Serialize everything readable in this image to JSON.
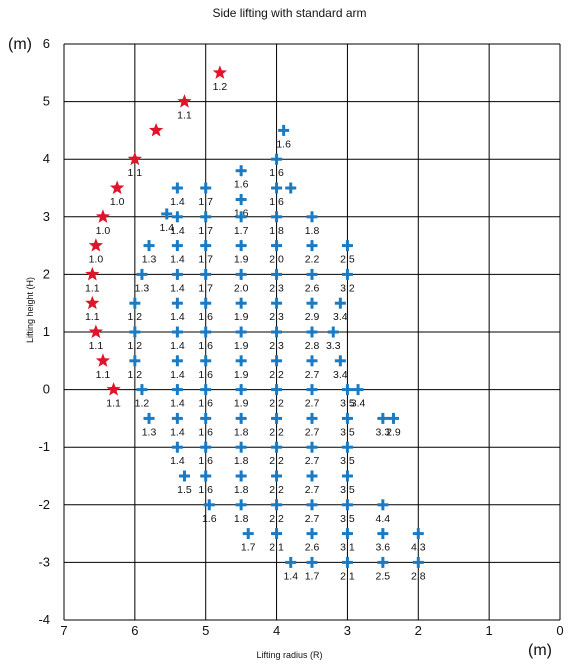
{
  "chart_data": {
    "type": "scatter",
    "title": "Side lifting with standard arm",
    "xlabel": "Lifting radius (R)",
    "ylabel": "Lifting height (H)",
    "x_unit": "(m)",
    "y_unit": "(m)",
    "xlim": [
      7,
      0
    ],
    "ylim": [
      -4,
      6
    ],
    "x_ticks": [
      "7",
      "6",
      "5",
      "4",
      "3",
      "2",
      "1",
      "0"
    ],
    "y_ticks": [
      "-4",
      "-3",
      "-2",
      "-1",
      "0",
      "1",
      "2",
      "3",
      "4",
      "5",
      "6"
    ],
    "grid": true,
    "marker_colors": {
      "star": "#e0142b",
      "cross": "#1a7ac4"
    },
    "series": [
      {
        "marker": "star",
        "points": [
          {
            "x": 4.8,
            "y": 5.5,
            "label": "1.2"
          },
          {
            "x": 5.3,
            "y": 5.0,
            "label": "1.1"
          },
          {
            "x": 5.7,
            "y": 4.5,
            "label": ""
          },
          {
            "x": 6.0,
            "y": 4.0,
            "label": "1.1"
          },
          {
            "x": 6.25,
            "y": 3.5,
            "label": "1.0"
          },
          {
            "x": 6.45,
            "y": 3.0,
            "label": "1.0"
          },
          {
            "x": 6.55,
            "y": 2.5,
            "label": "1.0"
          },
          {
            "x": 6.6,
            "y": 2.0,
            "label": "1.1"
          },
          {
            "x": 6.6,
            "y": 1.5,
            "label": "1.1"
          },
          {
            "x": 6.55,
            "y": 1.0,
            "label": "1.1"
          },
          {
            "x": 6.45,
            "y": 0.5,
            "label": "1.1"
          },
          {
            "x": 6.3,
            "y": 0.0,
            "label": "1.1"
          }
        ]
      },
      {
        "marker": "cross",
        "points": [
          {
            "x": 3.9,
            "y": 4.5,
            "label": "1.6"
          },
          {
            "x": 4.0,
            "y": 4.0,
            "label": "1.6"
          },
          {
            "x": 4.5,
            "y": 3.8,
            "label": "1.6"
          },
          {
            "x": 5.4,
            "y": 3.5,
            "label": "1.4"
          },
          {
            "x": 5.0,
            "y": 3.5,
            "label": "1.7"
          },
          {
            "x": 4.0,
            "y": 3.5,
            "label": "1.6"
          },
          {
            "x": 3.8,
            "y": 3.5,
            "label": ""
          },
          {
            "x": 4.5,
            "y": 3.3,
            "label": "1.6"
          },
          {
            "x": 5.55,
            "y": 3.05,
            "label": "1.4"
          },
          {
            "x": 5.4,
            "y": 3.0,
            "label": "1.4"
          },
          {
            "x": 5.0,
            "y": 3.0,
            "label": "1.7"
          },
          {
            "x": 4.5,
            "y": 3.0,
            "label": "1.7"
          },
          {
            "x": 4.0,
            "y": 3.0,
            "label": "1.8"
          },
          {
            "x": 3.5,
            "y": 3.0,
            "label": "1.8"
          },
          {
            "x": 5.8,
            "y": 2.5,
            "label": "1.3"
          },
          {
            "x": 5.4,
            "y": 2.5,
            "label": "1.4"
          },
          {
            "x": 5.0,
            "y": 2.5,
            "label": "1.7"
          },
          {
            "x": 4.5,
            "y": 2.5,
            "label": "1.9"
          },
          {
            "x": 4.0,
            "y": 2.5,
            "label": "2.0"
          },
          {
            "x": 3.5,
            "y": 2.5,
            "label": "2.2"
          },
          {
            "x": 3.0,
            "y": 2.5,
            "label": "2.5"
          },
          {
            "x": 5.9,
            "y": 2.0,
            "label": "1.3"
          },
          {
            "x": 5.4,
            "y": 2.0,
            "label": "1.4"
          },
          {
            "x": 5.0,
            "y": 2.0,
            "label": "1.7"
          },
          {
            "x": 4.5,
            "y": 2.0,
            "label": "2.0"
          },
          {
            "x": 4.0,
            "y": 2.0,
            "label": "2.3"
          },
          {
            "x": 3.5,
            "y": 2.0,
            "label": "2.6"
          },
          {
            "x": 3.0,
            "y": 2.0,
            "label": "3.2"
          },
          {
            "x": 6.0,
            "y": 1.5,
            "label": "1.2"
          },
          {
            "x": 5.4,
            "y": 1.5,
            "label": "1.4"
          },
          {
            "x": 5.0,
            "y": 1.5,
            "label": "1.6"
          },
          {
            "x": 4.5,
            "y": 1.5,
            "label": "1.9"
          },
          {
            "x": 4.0,
            "y": 1.5,
            "label": "2.3"
          },
          {
            "x": 3.5,
            "y": 1.5,
            "label": "2.9"
          },
          {
            "x": 3.1,
            "y": 1.5,
            "label": "3.4"
          },
          {
            "x": 6.0,
            "y": 1.0,
            "label": "1.2"
          },
          {
            "x": 5.4,
            "y": 1.0,
            "label": "1.4"
          },
          {
            "x": 5.0,
            "y": 1.0,
            "label": "1.6"
          },
          {
            "x": 4.5,
            "y": 1.0,
            "label": "1.9"
          },
          {
            "x": 4.0,
            "y": 1.0,
            "label": "2.3"
          },
          {
            "x": 3.5,
            "y": 1.0,
            "label": "2.8"
          },
          {
            "x": 3.2,
            "y": 1.0,
            "label": "3.3"
          },
          {
            "x": 6.0,
            "y": 0.5,
            "label": "1.2"
          },
          {
            "x": 5.4,
            "y": 0.5,
            "label": "1.4"
          },
          {
            "x": 5.0,
            "y": 0.5,
            "label": "1.6"
          },
          {
            "x": 4.5,
            "y": 0.5,
            "label": "1.9"
          },
          {
            "x": 4.0,
            "y": 0.5,
            "label": "2.2"
          },
          {
            "x": 3.5,
            "y": 0.5,
            "label": "2.7"
          },
          {
            "x": 3.1,
            "y": 0.5,
            "label": "3.4"
          },
          {
            "x": 5.9,
            "y": 0.0,
            "label": "1.2"
          },
          {
            "x": 5.4,
            "y": 0.0,
            "label": "1.4"
          },
          {
            "x": 5.0,
            "y": 0.0,
            "label": "1.6"
          },
          {
            "x": 4.5,
            "y": 0.0,
            "label": "1.9"
          },
          {
            "x": 4.0,
            "y": 0.0,
            "label": "2.2"
          },
          {
            "x": 3.5,
            "y": 0.0,
            "label": "2.7"
          },
          {
            "x": 3.0,
            "y": 0.0,
            "label": "3.5"
          },
          {
            "x": 2.85,
            "y": 0.0,
            "label": "3.4"
          },
          {
            "x": 5.8,
            "y": -0.5,
            "label": "1.3"
          },
          {
            "x": 5.4,
            "y": -0.5,
            "label": "1.4"
          },
          {
            "x": 5.0,
            "y": -0.5,
            "label": "1.6"
          },
          {
            "x": 4.5,
            "y": -0.5,
            "label": "1.8"
          },
          {
            "x": 4.0,
            "y": -0.5,
            "label": "2.2"
          },
          {
            "x": 3.5,
            "y": -0.5,
            "label": "2.7"
          },
          {
            "x": 3.0,
            "y": -0.5,
            "label": "3.5"
          },
          {
            "x": 2.5,
            "y": -0.5,
            "label": "3.3"
          },
          {
            "x": 2.35,
            "y": -0.5,
            "label": "2.9"
          },
          {
            "x": 5.4,
            "y": -1.0,
            "label": "1.4"
          },
          {
            "x": 5.0,
            "y": -1.0,
            "label": "1.6"
          },
          {
            "x": 4.5,
            "y": -1.0,
            "label": "1.8"
          },
          {
            "x": 4.0,
            "y": -1.0,
            "label": "2.2"
          },
          {
            "x": 3.5,
            "y": -1.0,
            "label": "2.7"
          },
          {
            "x": 3.0,
            "y": -1.0,
            "label": "3.5"
          },
          {
            "x": 5.3,
            "y": -1.5,
            "label": "1.5"
          },
          {
            "x": 5.0,
            "y": -1.5,
            "label": "1.6"
          },
          {
            "x": 4.5,
            "y": -1.5,
            "label": "1.8"
          },
          {
            "x": 4.0,
            "y": -1.5,
            "label": "2.2"
          },
          {
            "x": 3.5,
            "y": -1.5,
            "label": "2.7"
          },
          {
            "x": 3.0,
            "y": -1.5,
            "label": "3.5"
          },
          {
            "x": 4.95,
            "y": -2.0,
            "label": "1.6"
          },
          {
            "x": 4.5,
            "y": -2.0,
            "label": "1.8"
          },
          {
            "x": 4.0,
            "y": -2.0,
            "label": "2.2"
          },
          {
            "x": 3.5,
            "y": -2.0,
            "label": "2.7"
          },
          {
            "x": 3.0,
            "y": -2.0,
            "label": "3.5"
          },
          {
            "x": 2.5,
            "y": -2.0,
            "label": "4.4"
          },
          {
            "x": 4.4,
            "y": -2.5,
            "label": "1.7"
          },
          {
            "x": 4.0,
            "y": -2.5,
            "label": "2.1"
          },
          {
            "x": 3.5,
            "y": -2.5,
            "label": "2.6"
          },
          {
            "x": 3.0,
            "y": -2.5,
            "label": "3.1"
          },
          {
            "x": 2.5,
            "y": -2.5,
            "label": "3.6"
          },
          {
            "x": 2.0,
            "y": -2.5,
            "label": "4.3"
          },
          {
            "x": 3.8,
            "y": -3.0,
            "label": "1.4"
          },
          {
            "x": 3.5,
            "y": -3.0,
            "label": "1.7"
          },
          {
            "x": 3.0,
            "y": -3.0,
            "label": "2.1"
          },
          {
            "x": 2.5,
            "y": -3.0,
            "label": "2.5"
          },
          {
            "x": 2.0,
            "y": -3.0,
            "label": "2.8"
          }
        ]
      }
    ]
  }
}
